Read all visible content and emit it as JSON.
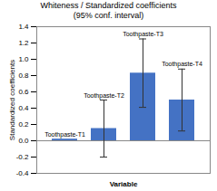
{
  "chart_data": {
    "type": "bar",
    "title": "Whiteness / Standardized coefficients",
    "subtitle": "(95% conf. interval)",
    "xlabel": "Variable",
    "ylabel": "Standardized coefficients",
    "categories": [
      "Toothpaste-T1",
      "Toothpaste-T2",
      "Toothpaste-T3",
      "Toothpaste-T4"
    ],
    "values": [
      0.02,
      0.15,
      0.83,
      0.5
    ],
    "errors_low": [
      0.0,
      0.35,
      0.42,
      0.38
    ],
    "errors_high": [
      0.0,
      0.35,
      0.42,
      0.38
    ],
    "annotations": [
      "Toothpaste-T1",
      "Toothpaste-T2",
      "Toothpaste-T3",
      "Toothpaste-T4"
    ],
    "color": "#4472C4",
    "ylim": [
      -0.4,
      1.4
    ],
    "yticks": [
      -0.4,
      -0.2,
      {
        "value": 0.0,
        "label": "0.0"
      },
      0.2,
      0.4,
      0.6,
      0.8,
      {
        "value": 1.0,
        "label": "1.0"
      },
      1.2,
      1.4
    ],
    "grid": false,
    "tick_labels": "y"
  }
}
